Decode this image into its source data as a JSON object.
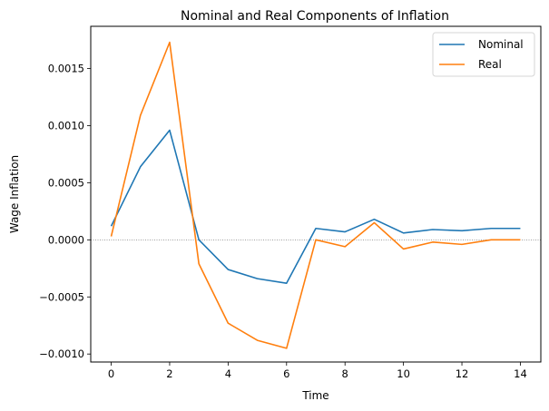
{
  "chart_data": {
    "type": "line",
    "title": "Nominal and Real Components of Inflation",
    "xlabel": "Time",
    "ylabel": "Wage Inflation",
    "x": [
      0,
      1,
      2,
      3,
      4,
      5,
      6,
      7,
      8,
      9,
      10,
      11,
      12,
      13,
      14
    ],
    "xlim": [
      -0.7,
      14.7
    ],
    "ylim": [
      -0.00107,
      0.00187
    ],
    "x_ticks": [
      0,
      2,
      4,
      6,
      8,
      10,
      12,
      14
    ],
    "x_tick_labels": [
      "0",
      "2",
      "4",
      "6",
      "8",
      "10",
      "12",
      "14"
    ],
    "y_ticks": [
      -0.001,
      -0.0005,
      0.0,
      0.0005,
      0.001,
      0.0015
    ],
    "y_tick_labels": [
      "−0.0010",
      "−0.0005",
      "0.0000",
      "0.0005",
      "0.0010",
      "0.0015"
    ],
    "zero_line": true,
    "grid": false,
    "legend_position": "top-right",
    "series": [
      {
        "name": "Nominal",
        "color": "#1f77b4",
        "values": [
          0.00012,
          0.00064,
          0.00096,
          0.0,
          -0.00026,
          -0.00034,
          -0.00038,
          0.0001,
          7e-05,
          0.00018,
          6e-05,
          9e-05,
          8e-05,
          0.0001,
          0.0001
        ]
      },
      {
        "name": "Real",
        "color": "#ff7f0e",
        "values": [
          3e-05,
          0.00109,
          0.00173,
          -0.00021,
          -0.00073,
          -0.00088,
          -0.00095,
          0.0,
          -6e-05,
          0.00015,
          -8e-05,
          -2e-05,
          -4e-05,
          0.0,
          0.0
        ]
      }
    ]
  }
}
